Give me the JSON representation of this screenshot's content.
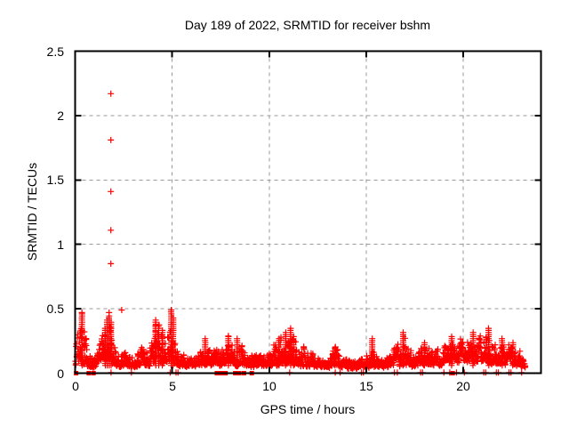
{
  "figure": {
    "title": "Day 189 of 2022, SRMTID for receiver bshm",
    "background": "#ffffff",
    "text_color": "#000000"
  },
  "chart_data": {
    "type": "scatter",
    "title": "Day 189 of 2022, SRMTID for receiver bshm",
    "xlabel": "GPS time / hours",
    "ylabel": "SRMTID / TECUs",
    "xlim": [
      0,
      24
    ],
    "ylim": [
      0,
      2.5
    ],
    "xticks": [
      0,
      5,
      10,
      15,
      20
    ],
    "xtick_labels": [
      "0",
      "5",
      "10",
      "15",
      "20"
    ],
    "yticks": [
      0,
      0.5,
      1,
      1.5,
      2,
      2.5
    ],
    "ytick_labels": [
      "0",
      "0.5",
      "1",
      "1.5",
      "2",
      "2.5"
    ],
    "grid": true,
    "grid_color": "#999999",
    "border_color": "#000000",
    "marker": "plus",
    "marker_color": "#ff0000",
    "legend": "none",
    "outliers": [
      [
        1.84,
        2.17
      ],
      [
        1.84,
        1.81
      ],
      [
        1.84,
        1.41
      ],
      [
        1.84,
        1.11
      ],
      [
        1.84,
        0.85
      ],
      [
        2.4,
        0.49
      ],
      [
        0.35,
        0.47
      ],
      [
        1.75,
        0.47
      ],
      [
        4.95,
        0.49
      ]
    ],
    "spikes": [
      [
        0.35,
        0.47
      ],
      [
        1.55,
        0.36
      ],
      [
        1.65,
        0.42
      ],
      [
        1.75,
        0.46
      ],
      [
        1.85,
        0.4
      ],
      [
        4.15,
        0.42
      ],
      [
        4.3,
        0.38
      ],
      [
        4.5,
        0.34
      ],
      [
        4.95,
        0.48
      ],
      [
        5.05,
        0.43
      ],
      [
        6.7,
        0.28
      ],
      [
        7.9,
        0.3
      ],
      [
        8.35,
        0.28
      ],
      [
        10.5,
        0.28
      ],
      [
        10.85,
        0.33
      ],
      [
        11.1,
        0.35
      ],
      [
        11.25,
        0.3
      ],
      [
        13.4,
        0.22
      ],
      [
        15.3,
        0.27
      ],
      [
        16.9,
        0.33
      ],
      [
        18.0,
        0.25
      ],
      [
        19.4,
        0.3
      ],
      [
        20.5,
        0.33
      ],
      [
        21.3,
        0.35
      ],
      [
        22.0,
        0.28
      ],
      [
        22.55,
        0.25
      ]
    ],
    "zero_squares": [
      0.05,
      0.7,
      0.95,
      7.3,
      7.45,
      7.6,
      7.75,
      8.25,
      8.45,
      8.7,
      9.1,
      19.45
    ],
    "zero_plus": [
      1.85,
      2.9,
      4.9,
      5.2,
      5.3,
      11.05,
      13.4,
      13.65,
      14.75,
      14.85,
      16.45,
      16.6,
      17.8,
      17.9,
      19.0,
      19.3,
      19.65,
      20.05,
      21.05,
      21.15,
      21.7,
      21.8,
      22.35,
      22.45,
      23.0
    ],
    "band_envelope": [
      [
        0.0,
        0.04,
        0.32
      ],
      [
        0.3,
        0.06,
        0.45
      ],
      [
        0.5,
        0.05,
        0.3
      ],
      [
        0.8,
        0.03,
        0.14
      ],
      [
        1.1,
        0.04,
        0.16
      ],
      [
        1.4,
        0.06,
        0.3
      ],
      [
        1.7,
        0.08,
        0.4
      ],
      [
        1.9,
        0.06,
        0.32
      ],
      [
        2.2,
        0.05,
        0.22
      ],
      [
        2.6,
        0.04,
        0.17
      ],
      [
        3.0,
        0.04,
        0.14
      ],
      [
        3.4,
        0.06,
        0.22
      ],
      [
        3.8,
        0.05,
        0.2
      ],
      [
        4.2,
        0.07,
        0.4
      ],
      [
        4.6,
        0.07,
        0.32
      ],
      [
        5.0,
        0.08,
        0.45
      ],
      [
        5.3,
        0.05,
        0.18
      ],
      [
        5.8,
        0.04,
        0.14
      ],
      [
        6.3,
        0.05,
        0.16
      ],
      [
        6.7,
        0.05,
        0.26
      ],
      [
        7.1,
        0.04,
        0.18
      ],
      [
        7.5,
        0.05,
        0.26
      ],
      [
        7.9,
        0.06,
        0.29
      ],
      [
        8.3,
        0.05,
        0.26
      ],
      [
        8.7,
        0.05,
        0.21
      ],
      [
        9.1,
        0.04,
        0.22
      ],
      [
        9.6,
        0.04,
        0.15
      ],
      [
        10.0,
        0.05,
        0.18
      ],
      [
        10.4,
        0.05,
        0.26
      ],
      [
        10.8,
        0.06,
        0.31
      ],
      [
        11.2,
        0.06,
        0.32
      ],
      [
        11.6,
        0.05,
        0.23
      ],
      [
        12.0,
        0.05,
        0.18
      ],
      [
        12.5,
        0.04,
        0.13
      ],
      [
        13.0,
        0.03,
        0.11
      ],
      [
        13.4,
        0.04,
        0.2
      ],
      [
        13.8,
        0.04,
        0.13
      ],
      [
        14.3,
        0.03,
        0.1
      ],
      [
        14.8,
        0.04,
        0.11
      ],
      [
        15.3,
        0.04,
        0.18
      ],
      [
        15.8,
        0.04,
        0.12
      ],
      [
        16.3,
        0.04,
        0.16
      ],
      [
        16.9,
        0.05,
        0.3
      ],
      [
        17.4,
        0.04,
        0.14
      ],
      [
        18.0,
        0.05,
        0.22
      ],
      [
        18.5,
        0.05,
        0.18
      ],
      [
        19.0,
        0.06,
        0.26
      ],
      [
        19.5,
        0.07,
        0.28
      ],
      [
        20.0,
        0.07,
        0.26
      ],
      [
        20.5,
        0.08,
        0.31
      ],
      [
        21.0,
        0.07,
        0.28
      ],
      [
        21.3,
        0.07,
        0.32
      ],
      [
        21.7,
        0.05,
        0.2
      ],
      [
        22.0,
        0.05,
        0.26
      ],
      [
        22.4,
        0.07,
        0.26
      ],
      [
        22.8,
        0.05,
        0.2
      ],
      [
        23.1,
        0.04,
        0.16
      ],
      [
        23.2,
        0.04,
        0.14
      ]
    ],
    "synth": {
      "seed": 20220189,
      "points_per_hour": 85,
      "x_start": 0.02,
      "x_end": 23.2,
      "bias_power": 3,
      "smooth": 0.5,
      "scale": 1.4
    }
  }
}
